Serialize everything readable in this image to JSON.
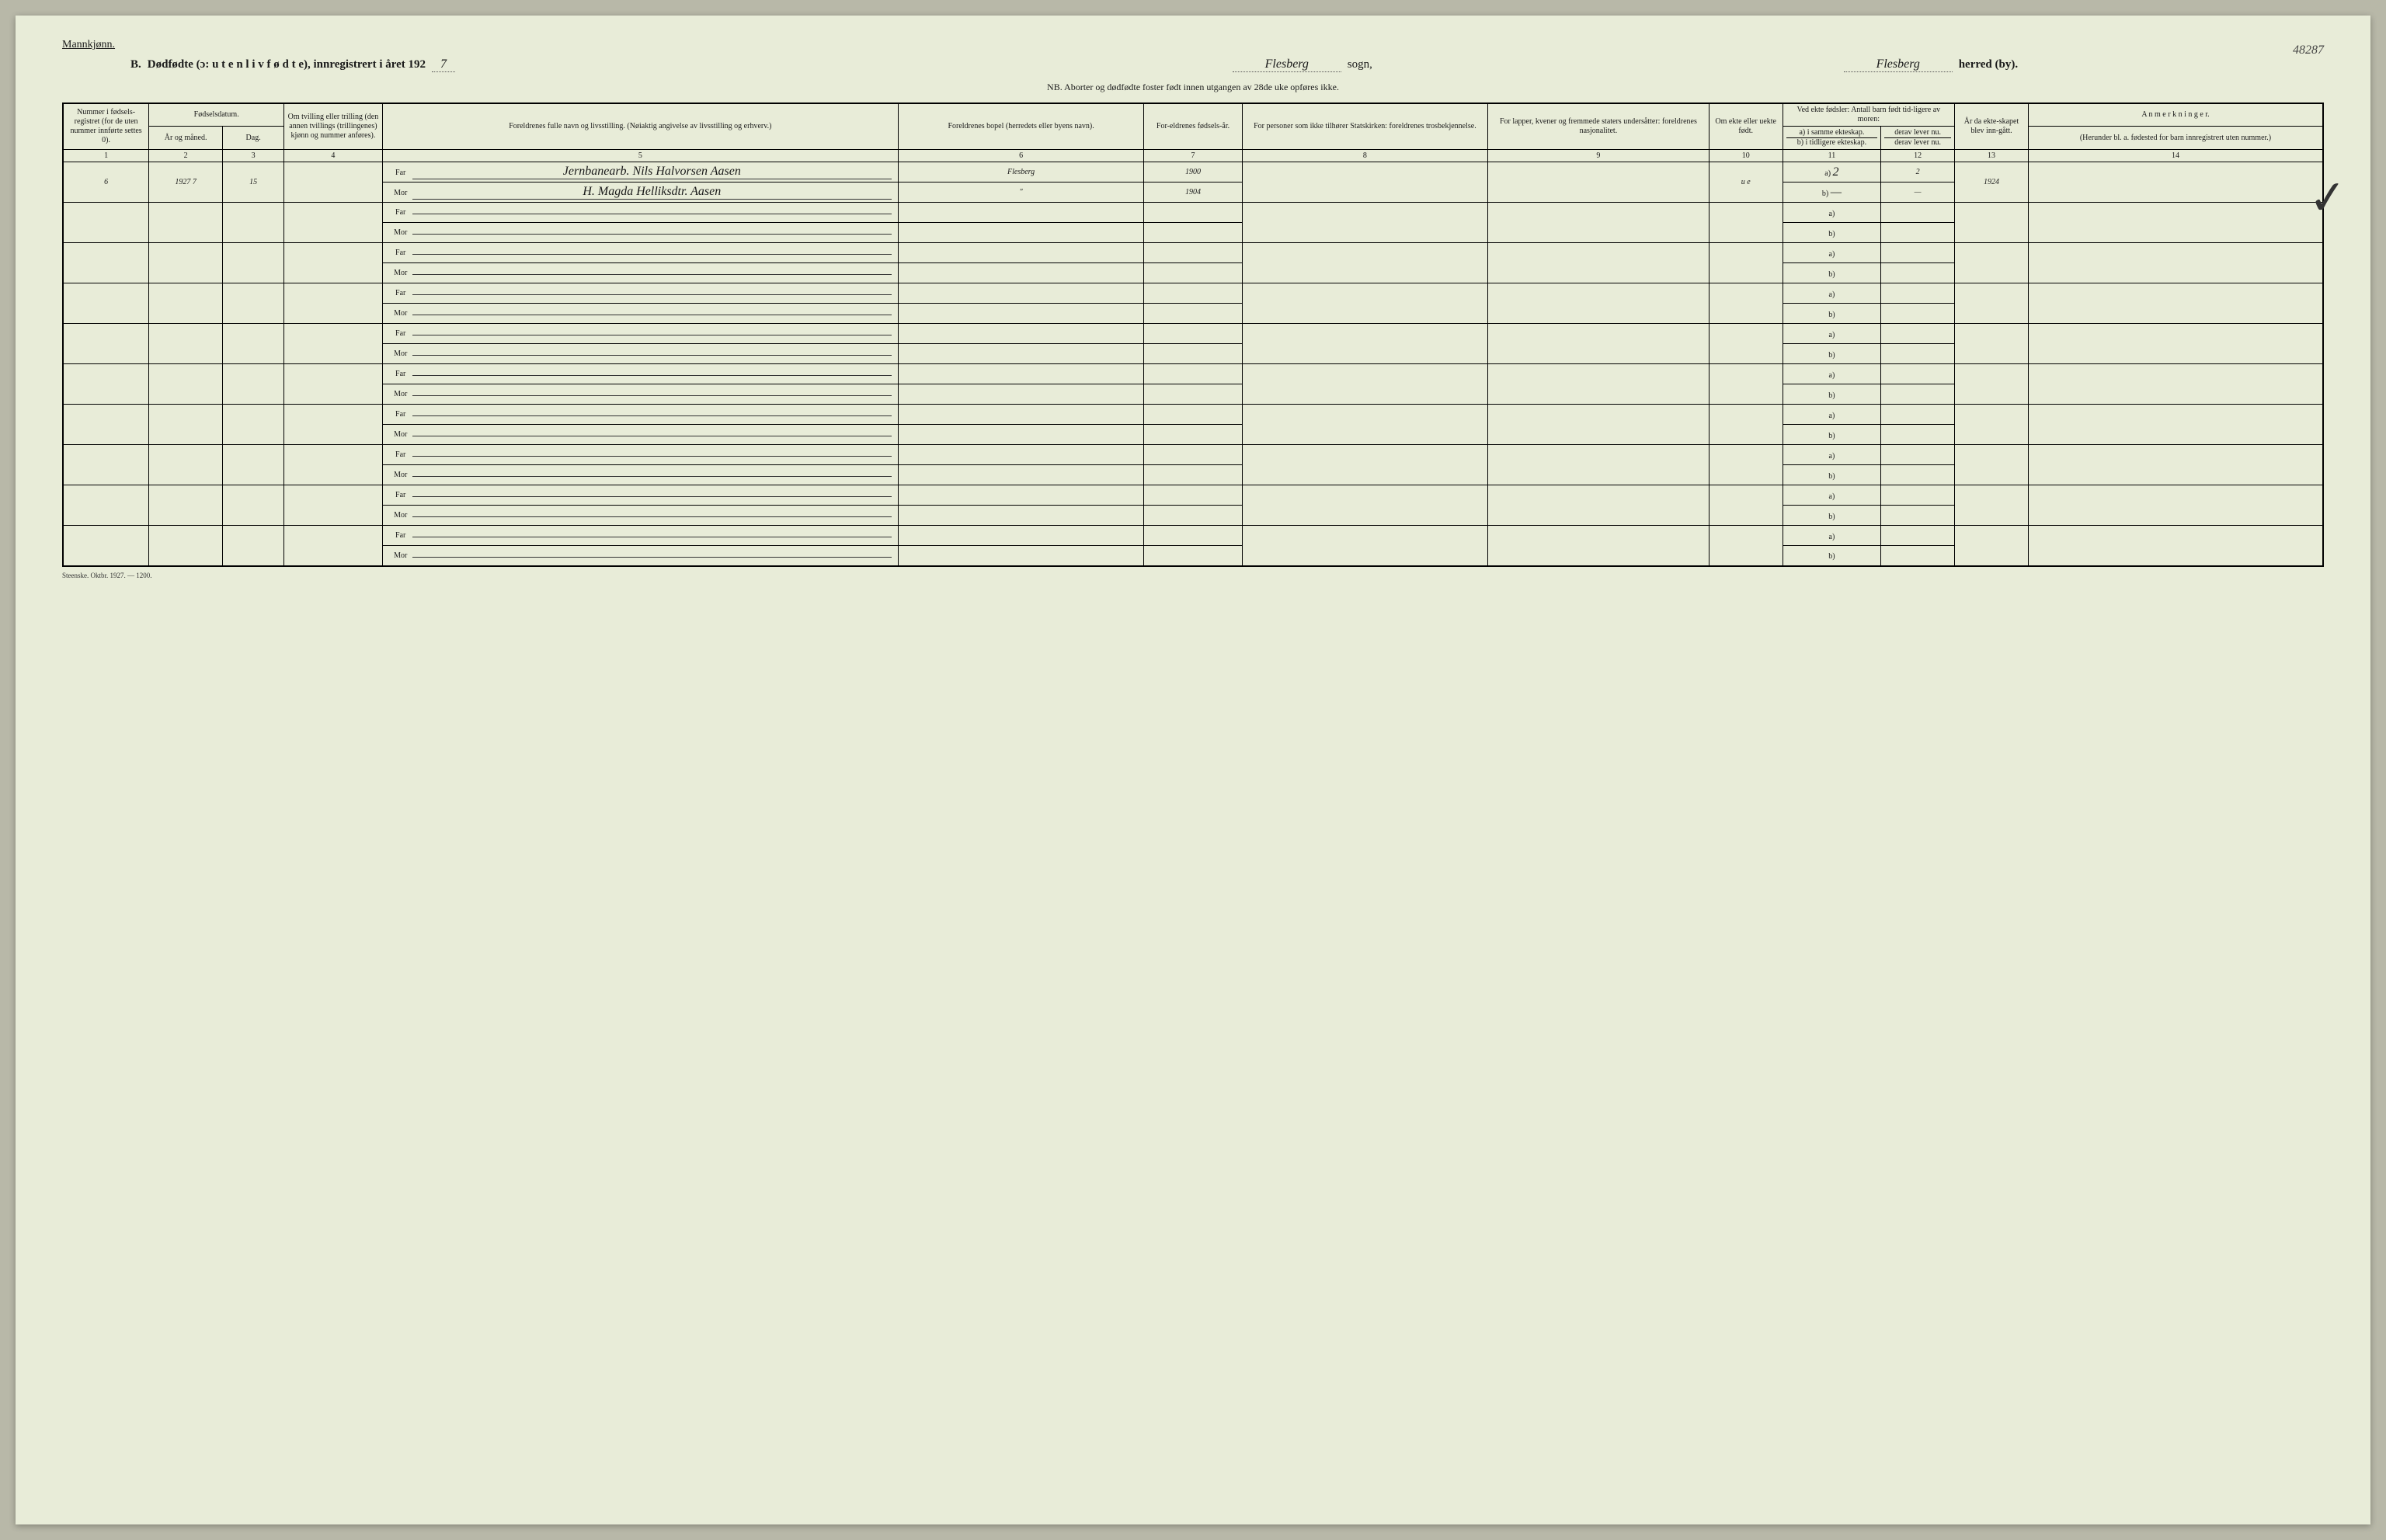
{
  "page": {
    "gender_label": "Mannkjønn.",
    "section_letter": "B.",
    "title_main": "Dødfødte (ɔ: u t e n  l i v  f ø d t e), innregistrert i året 192",
    "year_digit": "7",
    "sogn_label": "sogn,",
    "sogn_value": "Flesberg",
    "herred_label": "herred (by).",
    "herred_value": "Flesberg",
    "page_number": "48287",
    "nb_line": "NB.  Aborter og dødfødte foster født innen utgangen av 28de uke opføres ikke.",
    "checkmark": "✓",
    "footer": "Steenske. Oktbr. 1927. — 1200."
  },
  "columns": {
    "c1": "Nummer i fødsels-registret (for de uten nummer innførte settes 0).",
    "c2_top": "Fødselsdatum.",
    "c2a": "År og måned.",
    "c2b": "Dag.",
    "c4": "Om tvilling eller trilling (den annen tvillings (trillingenes) kjønn og nummer anføres).",
    "c5": "Foreldrenes fulle navn og livsstilling. (Nøiaktig angivelse av livsstilling og erhverv.)",
    "c6": "Foreldrenes bopel (herredets eller byens navn).",
    "c7": "For-eldrenes fødsels-år.",
    "c8": "For personer som ikke tilhører Statskirken: foreldrenes trosbekjennelse.",
    "c9": "For lapper, kvener og fremmede staters undersåtter: foreldrenes nasjonalitet.",
    "c10": "Om ekte eller uekte født.",
    "c11_top": "Ved ekte fødsler: Antall barn født tid-ligere av moren:",
    "c11a": "a) i samme ekteskap.",
    "c11b": "b) i tidligere ekteskap.",
    "c12a": "derav lever nu.",
    "c12b": "derav lever nu.",
    "c13": "År da ekte-skapet blev inn-gått.",
    "c14_top": "A n m e r k n i n g e r.",
    "c14": "(Herunder bl. a. fødested for barn innregistrert uten nummer.)"
  },
  "colnums": [
    "1",
    "2",
    "3",
    "4",
    "5",
    "6",
    "7",
    "8",
    "9",
    "10",
    "11",
    "12",
    "13",
    "14"
  ],
  "labels": {
    "far": "Far",
    "mor": "Mor",
    "a": "a)",
    "b": "b)"
  },
  "rows": [
    {
      "num": "6",
      "year_month": "1927  7",
      "day": "15",
      "twin": "",
      "far": "Jernbanearb. Nils Halvorsen Aasen",
      "mor": "H. Magda Helliksdtr. Aasen",
      "bopel_far": "Flesberg",
      "bopel_mor": "\"",
      "fodselsaar_far": "1900",
      "fodselsaar_mor": "1904",
      "c8": "",
      "c9": "",
      "ekte": "u e",
      "a_val": "2",
      "a_lever": "2",
      "b_val": "—",
      "b_lever": "—",
      "aar_ekteskap": "1924",
      "anm": ""
    },
    {
      "num": "",
      "year_month": "",
      "day": "",
      "twin": "",
      "far": "",
      "mor": "",
      "bopel_far": "",
      "bopel_mor": "",
      "fodselsaar_far": "",
      "fodselsaar_mor": "",
      "c8": "",
      "c9": "",
      "ekte": "",
      "a_val": "",
      "a_lever": "",
      "b_val": "",
      "b_lever": "",
      "aar_ekteskap": "",
      "anm": ""
    },
    {
      "num": "",
      "year_month": "",
      "day": "",
      "twin": "",
      "far": "",
      "mor": "",
      "bopel_far": "",
      "bopel_mor": "",
      "fodselsaar_far": "",
      "fodselsaar_mor": "",
      "c8": "",
      "c9": "",
      "ekte": "",
      "a_val": "",
      "a_lever": "",
      "b_val": "",
      "b_lever": "",
      "aar_ekteskap": "",
      "anm": ""
    },
    {
      "num": "",
      "year_month": "",
      "day": "",
      "twin": "",
      "far": "",
      "mor": "",
      "bopel_far": "",
      "bopel_mor": "",
      "fodselsaar_far": "",
      "fodselsaar_mor": "",
      "c8": "",
      "c9": "",
      "ekte": "",
      "a_val": "",
      "a_lever": "",
      "b_val": "",
      "b_lever": "",
      "aar_ekteskap": "",
      "anm": ""
    },
    {
      "num": "",
      "year_month": "",
      "day": "",
      "twin": "",
      "far": "",
      "mor": "",
      "bopel_far": "",
      "bopel_mor": "",
      "fodselsaar_far": "",
      "fodselsaar_mor": "",
      "c8": "",
      "c9": "",
      "ekte": "",
      "a_val": "",
      "a_lever": "",
      "b_val": "",
      "b_lever": "",
      "aar_ekteskap": "",
      "anm": ""
    },
    {
      "num": "",
      "year_month": "",
      "day": "",
      "twin": "",
      "far": "",
      "mor": "",
      "bopel_far": "",
      "bopel_mor": "",
      "fodselsaar_far": "",
      "fodselsaar_mor": "",
      "c8": "",
      "c9": "",
      "ekte": "",
      "a_val": "",
      "a_lever": "",
      "b_val": "",
      "b_lever": "",
      "aar_ekteskap": "",
      "anm": ""
    },
    {
      "num": "",
      "year_month": "",
      "day": "",
      "twin": "",
      "far": "",
      "mor": "",
      "bopel_far": "",
      "bopel_mor": "",
      "fodselsaar_far": "",
      "fodselsaar_mor": "",
      "c8": "",
      "c9": "",
      "ekte": "",
      "a_val": "",
      "a_lever": "",
      "b_val": "",
      "b_lever": "",
      "aar_ekteskap": "",
      "anm": ""
    },
    {
      "num": "",
      "year_month": "",
      "day": "",
      "twin": "",
      "far": "",
      "mor": "",
      "bopel_far": "",
      "bopel_mor": "",
      "fodselsaar_far": "",
      "fodselsaar_mor": "",
      "c8": "",
      "c9": "",
      "ekte": "",
      "a_val": "",
      "a_lever": "",
      "b_val": "",
      "b_lever": "",
      "aar_ekteskap": "",
      "anm": ""
    },
    {
      "num": "",
      "year_month": "",
      "day": "",
      "twin": "",
      "far": "",
      "mor": "",
      "bopel_far": "",
      "bopel_mor": "",
      "fodselsaar_far": "",
      "fodselsaar_mor": "",
      "c8": "",
      "c9": "",
      "ekte": "",
      "a_val": "",
      "a_lever": "",
      "b_val": "",
      "b_lever": "",
      "aar_ekteskap": "",
      "anm": ""
    },
    {
      "num": "",
      "year_month": "",
      "day": "",
      "twin": "",
      "far": "",
      "mor": "",
      "bopel_far": "",
      "bopel_mor": "",
      "fodselsaar_far": "",
      "fodselsaar_mor": "",
      "c8": "",
      "c9": "",
      "ekte": "",
      "a_val": "",
      "a_lever": "",
      "b_val": "",
      "b_lever": "",
      "aar_ekteskap": "",
      "anm": ""
    }
  ],
  "style": {
    "page_bg": "#e8ecd8",
    "ink": "#1a1a1a",
    "border": "#000000",
    "handwriting_color": "#2a2a2a"
  }
}
